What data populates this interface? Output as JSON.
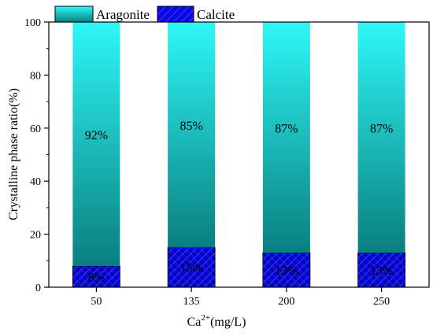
{
  "chart_data": {
    "type": "bar",
    "stacked": true,
    "categories": [
      "50",
      "135",
      "200",
      "250"
    ],
    "series": [
      {
        "name": "Calcite",
        "values": [
          8,
          15,
          13,
          13
        ],
        "labels": [
          "8%",
          "15%",
          "13%",
          "13%"
        ],
        "color": "#0000ee",
        "pattern": "hatch"
      },
      {
        "name": "Aragonite",
        "values": [
          92,
          85,
          87,
          87
        ],
        "labels": [
          "92%",
          "85%",
          "87%",
          "87%"
        ],
        "color_top": "#2ef7f7",
        "color_bottom": "#0a7f7f"
      }
    ],
    "ylim": [
      0,
      100
    ],
    "yticks": [
      0,
      20,
      40,
      60,
      80,
      100
    ],
    "xlabel": "Ca",
    "xlabel_sup": "2+",
    "xlabel_unit": "(mg/L)",
    "ylabel": "Crystalline phase ratio(%)",
    "legend": {
      "placement": "top-left",
      "entries": [
        "Aragonite",
        "Calcite"
      ]
    },
    "grid": false
  }
}
